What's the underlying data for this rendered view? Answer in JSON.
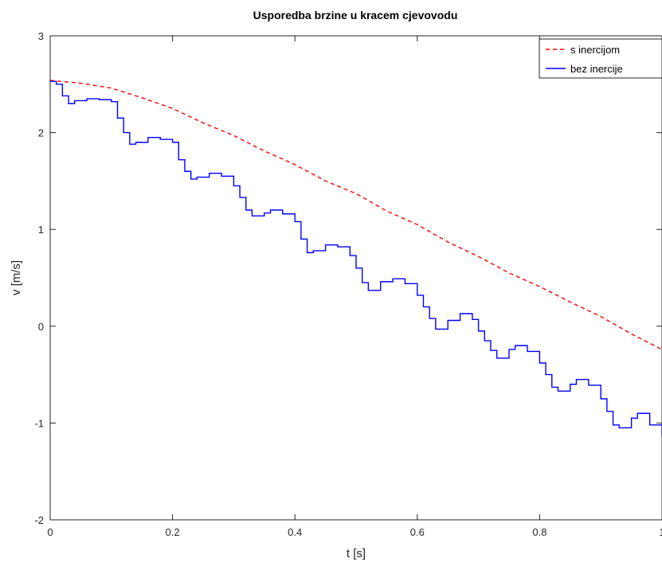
{
  "chart_data": {
    "type": "line",
    "title": "Usporedba brzine u kracem cjevovodu",
    "xlabel": "t [s]",
    "ylabel": "v [m/s]",
    "xlim": [
      0,
      1
    ],
    "ylim": [
      -2,
      3
    ],
    "xticks": [
      0,
      0.2,
      0.4,
      0.6,
      0.8,
      1
    ],
    "xtick_labels": [
      "0",
      "0.2",
      "0.4",
      "0.6",
      "0.8",
      "1"
    ],
    "yticks": [
      -2,
      -1,
      0,
      1,
      2,
      3
    ],
    "ytick_labels": [
      "-2",
      "-1",
      "0",
      "1",
      "2",
      "3"
    ],
    "grid": false,
    "legend_position": "top-right",
    "series": [
      {
        "name": "s inercijom",
        "color": "#ff0000",
        "style": "dashed",
        "points": [
          [
            0,
            2.54
          ],
          [
            0.05,
            2.51
          ],
          [
            0.1,
            2.46
          ],
          [
            0.15,
            2.36
          ],
          [
            0.2,
            2.25
          ],
          [
            0.25,
            2.1
          ],
          [
            0.3,
            1.97
          ],
          [
            0.35,
            1.81
          ],
          [
            0.4,
            1.67
          ],
          [
            0.45,
            1.5
          ],
          [
            0.5,
            1.37
          ],
          [
            0.55,
            1.19
          ],
          [
            0.6,
            1.05
          ],
          [
            0.65,
            0.87
          ],
          [
            0.7,
            0.72
          ],
          [
            0.75,
            0.55
          ],
          [
            0.8,
            0.41
          ],
          [
            0.85,
            0.25
          ],
          [
            0.9,
            0.1
          ],
          [
            0.95,
            -0.08
          ],
          [
            1,
            -0.24
          ]
        ]
      },
      {
        "name": "bez inercije",
        "color": "#0000ff",
        "style": "solid-step",
        "points": [
          [
            0,
            2.53
          ],
          [
            0.01,
            2.5
          ],
          [
            0.02,
            2.38
          ],
          [
            0.03,
            2.3
          ],
          [
            0.04,
            2.33
          ],
          [
            0.06,
            2.35
          ],
          [
            0.08,
            2.34
          ],
          [
            0.1,
            2.32
          ],
          [
            0.11,
            2.15
          ],
          [
            0.12,
            2.0
          ],
          [
            0.13,
            1.88
          ],
          [
            0.14,
            1.9
          ],
          [
            0.16,
            1.95
          ],
          [
            0.18,
            1.93
          ],
          [
            0.2,
            1.9
          ],
          [
            0.21,
            1.72
          ],
          [
            0.22,
            1.6
          ],
          [
            0.23,
            1.52
          ],
          [
            0.24,
            1.54
          ],
          [
            0.26,
            1.58
          ],
          [
            0.28,
            1.55
          ],
          [
            0.3,
            1.45
          ],
          [
            0.31,
            1.33
          ],
          [
            0.32,
            1.2
          ],
          [
            0.33,
            1.14
          ],
          [
            0.35,
            1.17
          ],
          [
            0.36,
            1.2
          ],
          [
            0.38,
            1.16
          ],
          [
            0.4,
            1.08
          ],
          [
            0.41,
            0.9
          ],
          [
            0.42,
            0.76
          ],
          [
            0.43,
            0.78
          ],
          [
            0.45,
            0.84
          ],
          [
            0.47,
            0.82
          ],
          [
            0.49,
            0.73
          ],
          [
            0.5,
            0.6
          ],
          [
            0.51,
            0.45
          ],
          [
            0.52,
            0.37
          ],
          [
            0.54,
            0.46
          ],
          [
            0.56,
            0.49
          ],
          [
            0.58,
            0.44
          ],
          [
            0.6,
            0.32
          ],
          [
            0.61,
            0.2
          ],
          [
            0.62,
            0.08
          ],
          [
            0.63,
            -0.03
          ],
          [
            0.65,
            0.06
          ],
          [
            0.67,
            0.13
          ],
          [
            0.69,
            0.07
          ],
          [
            0.7,
            -0.05
          ],
          [
            0.71,
            -0.15
          ],
          [
            0.72,
            -0.25
          ],
          [
            0.73,
            -0.33
          ],
          [
            0.75,
            -0.24
          ],
          [
            0.76,
            -0.2
          ],
          [
            0.78,
            -0.26
          ],
          [
            0.8,
            -0.38
          ],
          [
            0.81,
            -0.5
          ],
          [
            0.82,
            -0.63
          ],
          [
            0.83,
            -0.67
          ],
          [
            0.85,
            -0.6
          ],
          [
            0.86,
            -0.55
          ],
          [
            0.88,
            -0.61
          ],
          [
            0.9,
            -0.75
          ],
          [
            0.91,
            -0.88
          ],
          [
            0.92,
            -1.02
          ],
          [
            0.93,
            -1.05
          ],
          [
            0.95,
            -0.95
          ],
          [
            0.96,
            -0.9
          ],
          [
            0.98,
            -1.02
          ],
          [
            1,
            -1.14
          ]
        ]
      }
    ]
  }
}
